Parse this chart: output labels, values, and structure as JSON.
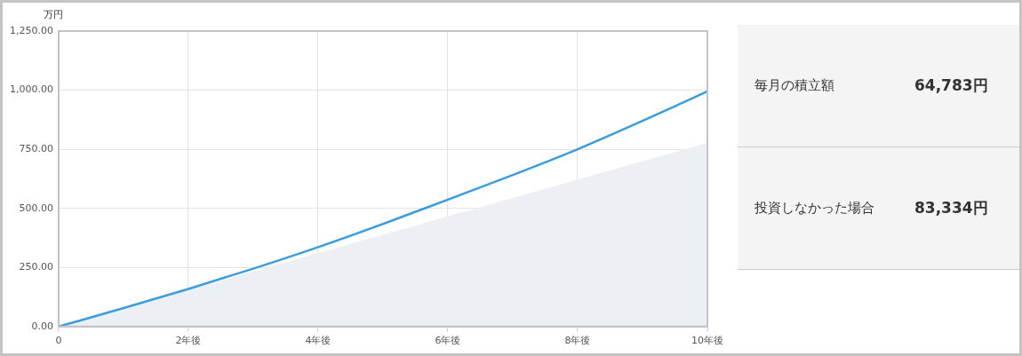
{
  "chart_data": [
    {
      "type": "line",
      "ylabel": "万円",
      "xlim": [
        0,
        10
      ],
      "xticks": [
        0,
        {
          "value": 2,
          "label": "2年後"
        },
        {
          "value": 4,
          "label": "4年後"
        },
        {
          "value": 6,
          "label": "6年後"
        },
        {
          "value": 8,
          "label": "8年後"
        },
        {
          "value": 10,
          "label": "10年後"
        }
      ],
      "ylim": [
        0,
        1250
      ],
      "yticks": [
        {
          "value": 0,
          "label": "0.00"
        },
        {
          "value": 250,
          "label": "250.00"
        },
        {
          "value": 500,
          "label": "500.00"
        },
        {
          "value": 750,
          "label": "750.00"
        },
        {
          "value": 1000,
          "label": "1,000.00"
        },
        {
          "value": 1250,
          "label": "1,250.00"
        }
      ],
      "grid": true,
      "legend": false,
      "marker": "none",
      "line_style": "solid",
      "series": [
        {
          "type": "area",
          "color": "#eceff4",
          "x": [
            0,
            2,
            4,
            6,
            8,
            10
          ],
          "values": [
            0,
            155,
            311,
            466,
            622,
            777
          ]
        },
        {
          "type": "line",
          "color": "#3a9de0",
          "x": [
            0,
            1,
            2,
            3,
            4,
            5,
            6,
            7,
            8,
            9,
            10
          ],
          "values": [
            0,
            78,
            159,
            245,
            336,
            434,
            537,
            641,
            750,
            870,
            995
          ]
        }
      ]
    },
    {
      "type": "other",
      "annotations": [
        "毎月の積立額",
        "64,783円",
        "投資しなかった場合",
        "83,334円"
      ]
    }
  ]
}
